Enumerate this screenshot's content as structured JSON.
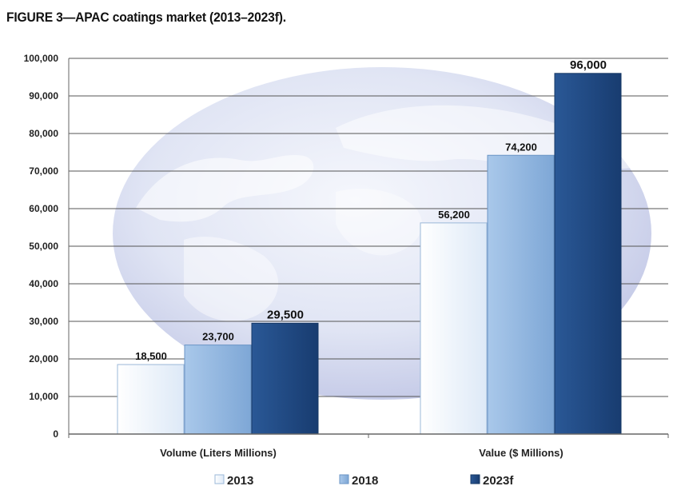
{
  "title": "FIGURE 3—APAC coatings market (2013–2023f).",
  "colors": {
    "s2013": "#e6f0fb",
    "s2018": "#8fb6e0",
    "s2023": "#1f4780",
    "grid": "#555555",
    "axis": "#666666"
  },
  "chart_data": {
    "type": "bar",
    "title": "FIGURE 3—APAC coatings market (2013–2023f).",
    "categories": [
      "Volume (Liters Millions)",
      "Value ($ Millions)"
    ],
    "series": [
      {
        "name": "2013",
        "values": [
          18500,
          56200
        ],
        "labels": [
          "18,500",
          "56,200"
        ]
      },
      {
        "name": "2018",
        "values": [
          23700,
          74200
        ],
        "labels": [
          "23,700",
          "74,200"
        ]
      },
      {
        "name": "2023f",
        "values": [
          29500,
          96000
        ],
        "labels": [
          "29,500",
          "96,000"
        ]
      }
    ],
    "ylim": [
      0,
      100000
    ],
    "yticks": [
      0,
      10000,
      20000,
      30000,
      40000,
      50000,
      60000,
      70000,
      80000,
      90000,
      100000
    ],
    "ytick_labels": [
      "0",
      "10,000",
      "20,000",
      "30,000",
      "40,000",
      "50,000",
      "60,000",
      "70,000",
      "80,000",
      "90,000",
      "100,000"
    ],
    "grid": true,
    "legend_position": "bottom",
    "xlabel": "",
    "ylabel": ""
  }
}
